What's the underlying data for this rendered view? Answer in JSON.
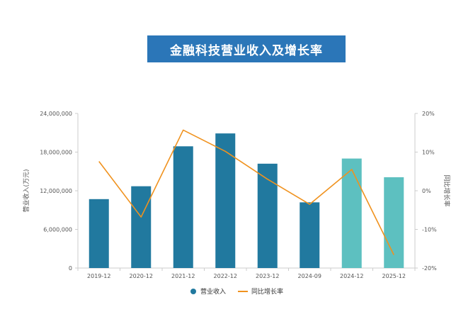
{
  "title": "金融科技营业收入及增长率",
  "chart_data": {
    "type": "bar",
    "categories": [
      "2019-12",
      "2020-12",
      "2021-12",
      "2022-12",
      "2023-12",
      "2024-09",
      "2024-12",
      "2025-12"
    ],
    "series": [
      {
        "name": "营业收入",
        "type": "bar",
        "axis": "left",
        "values": [
          10700000,
          12700000,
          18900000,
          20900000,
          16200000,
          10200000,
          17000000,
          14100000
        ],
        "colors": [
          "#21799f",
          "#21799f",
          "#21799f",
          "#21799f",
          "#21799f",
          "#21799f",
          "#5dc0c0",
          "#5dc0c0"
        ]
      },
      {
        "name": "同比增长率",
        "type": "line",
        "axis": "right",
        "values": [
          7.6,
          -6.8,
          15.7,
          10.2,
          3.0,
          -3.5,
          5.5,
          -16.6
        ],
        "color": "#f0921e"
      }
    ],
    "ylabel": "营业收入(万元)",
    "y2label": "同比增长率",
    "ylim": [
      0,
      24000000
    ],
    "y2lim": [
      -20,
      20
    ],
    "yticks": [
      "0",
      "6,000,000",
      "12,000,000",
      "18,000,000",
      "24,000,000"
    ],
    "y2ticks": [
      "-20%",
      "-10%",
      "0%",
      "10%",
      "20%"
    ],
    "legend_position": "bottom",
    "grid": false
  }
}
